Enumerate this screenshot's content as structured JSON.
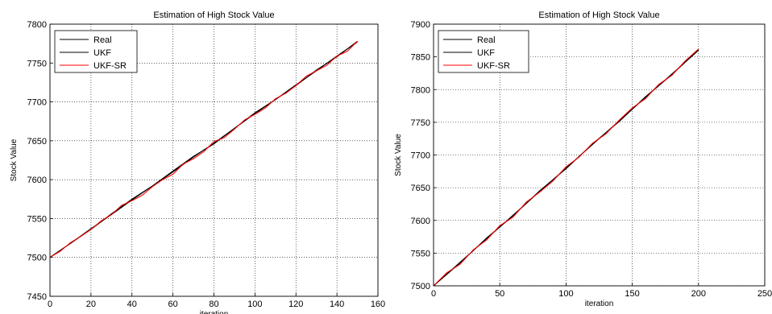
{
  "chart_data": [
    {
      "type": "line",
      "title": "Estimation of High Stock Value",
      "xlabel": "iteration",
      "ylabel": "Stock Value",
      "xlim": [
        0,
        160
      ],
      "ylim": [
        7450,
        7800
      ],
      "xticks": [
        0,
        20,
        40,
        60,
        80,
        100,
        120,
        140,
        160
      ],
      "yticks": [
        7450,
        7500,
        7550,
        7600,
        7650,
        7700,
        7750,
        7800
      ],
      "grid": true,
      "legend": "top-left",
      "series": [
        {
          "name": "Real",
          "color": "#000000",
          "x": [
            0,
            10,
            20,
            30,
            40,
            50,
            60,
            70,
            80,
            90,
            100,
            110,
            120,
            130,
            140,
            150
          ],
          "y": [
            7500,
            7518,
            7537,
            7555,
            7574,
            7592,
            7610,
            7629,
            7647,
            7666,
            7685,
            7703,
            7722,
            7740,
            7759,
            7777
          ]
        },
        {
          "name": "UKF",
          "color": "#000000",
          "x": [
            0,
            10,
            20,
            30,
            40,
            50,
            60,
            70,
            80,
            90,
            100,
            110,
            120,
            130,
            140,
            150
          ],
          "y": [
            7500,
            7518,
            7536,
            7556,
            7575,
            7592,
            7611,
            7630,
            7646,
            7666,
            7686,
            7703,
            7721,
            7741,
            7758,
            7778
          ]
        },
        {
          "name": "UKF-SR",
          "color": "#ff0000",
          "x": [
            0,
            5,
            10,
            15,
            20,
            25,
            30,
            35,
            40,
            45,
            50,
            55,
            60,
            65,
            70,
            75,
            80,
            85,
            90,
            95,
            100,
            105,
            110,
            115,
            120,
            125,
            130,
            135,
            140,
            145,
            150
          ],
          "y": [
            7500,
            7508,
            7519,
            7527,
            7536,
            7547,
            7555,
            7567,
            7573,
            7580,
            7591,
            7600,
            7607,
            7620,
            7627,
            7636,
            7649,
            7654,
            7665,
            7677,
            7684,
            7692,
            7704,
            7711,
            7721,
            7733,
            7740,
            7747,
            7759,
            7765,
            7778
          ]
        }
      ]
    },
    {
      "type": "line",
      "title": "Estimation of High Stock Value",
      "xlabel": "iteration",
      "ylabel": "Stock Value",
      "xlim": [
        0,
        250
      ],
      "ylim": [
        7500,
        7900
      ],
      "xticks": [
        0,
        50,
        100,
        150,
        200,
        250
      ],
      "yticks": [
        7500,
        7550,
        7600,
        7650,
        7700,
        7750,
        7800,
        7850,
        7900
      ],
      "grid": true,
      "legend": "top-left",
      "series": [
        {
          "name": "Real",
          "color": "#000000",
          "x": [
            0,
            20,
            40,
            60,
            80,
            100,
            120,
            140,
            160,
            180,
            200
          ],
          "y": [
            7500,
            7536,
            7572,
            7608,
            7644,
            7680,
            7716,
            7752,
            7788,
            7824,
            7860
          ]
        },
        {
          "name": "UKF",
          "color": "#000000",
          "x": [
            0,
            20,
            40,
            60,
            80,
            100,
            120,
            140,
            160,
            180,
            200
          ],
          "y": [
            7500,
            7535,
            7573,
            7607,
            7645,
            7679,
            7717,
            7751,
            7789,
            7823,
            7861
          ]
        },
        {
          "name": "UKF-SR",
          "color": "#ff0000",
          "x": [
            0,
            10,
            20,
            30,
            40,
            50,
            60,
            70,
            80,
            90,
            100,
            110,
            120,
            130,
            140,
            150,
            160,
            170,
            180,
            190,
            200
          ],
          "y": [
            7500,
            7520,
            7533,
            7555,
            7570,
            7592,
            7605,
            7628,
            7643,
            7660,
            7682,
            7697,
            7718,
            7732,
            7753,
            7772,
            7786,
            7808,
            7822,
            7844,
            7862
          ]
        }
      ]
    }
  ]
}
